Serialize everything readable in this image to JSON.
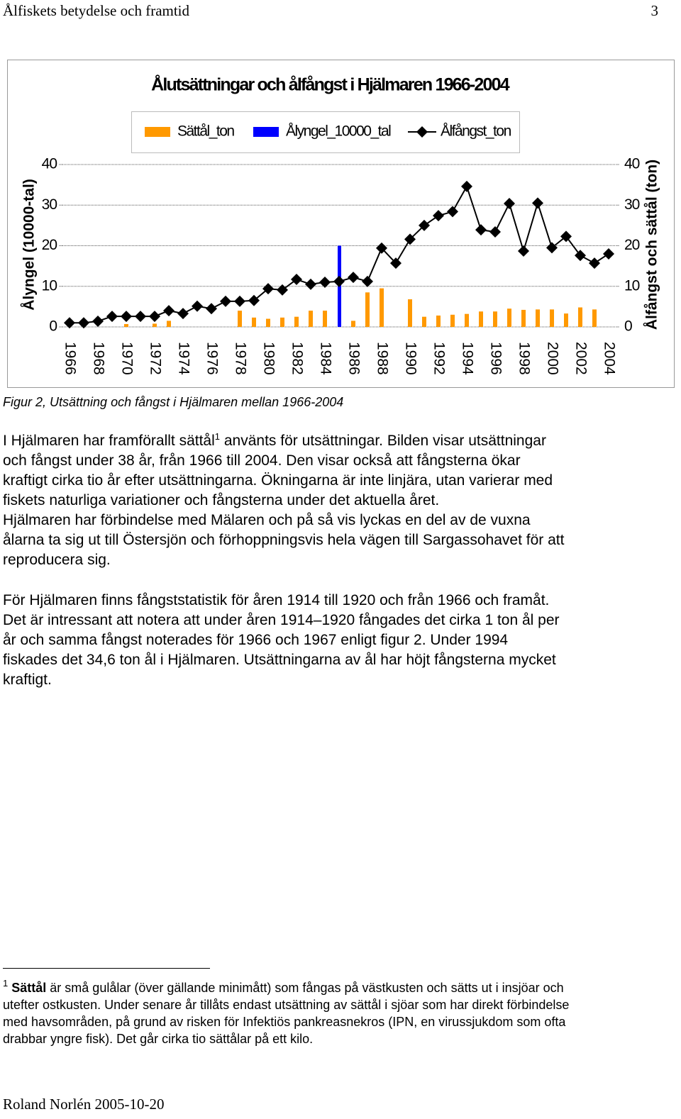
{
  "header": {
    "title": "Ålfiskets betydelse och framtid",
    "page": "3"
  },
  "chart_data": {
    "type": "bar",
    "title": "Ålutsättningar och ålfångst i Hjälmaren 1966-2004",
    "categories": [
      "1966",
      null,
      "1968",
      null,
      "1970",
      null,
      "1972",
      null,
      "1974",
      null,
      "1976",
      null,
      "1978",
      null,
      "1980",
      null,
      "1982",
      null,
      "1984",
      null,
      "1986",
      null,
      "1988",
      null,
      "1990",
      null,
      "1992",
      null,
      "1994",
      null,
      "1996",
      null,
      "1998",
      null,
      "2000",
      null,
      "2002",
      null,
      "2004"
    ],
    "series": [
      {
        "name": "Sättål_ton",
        "color": "#ff9900",
        "axis": "y2",
        "values": [
          0,
          0,
          0,
          0,
          0.7,
          0,
          0.8,
          1.5,
          0,
          0,
          0,
          0,
          4,
          2.3,
          2,
          2.3,
          2.5,
          4,
          4,
          0,
          1.5,
          8.5,
          9.5,
          0,
          6.8,
          2.5,
          2.8,
          3,
          3.2,
          3.8,
          3.8,
          4.5,
          4.2,
          4.3,
          4.3,
          3.3,
          4.8,
          4.3,
          0
        ]
      },
      {
        "name": "Ålyngel_10000_tal",
        "color": "#0000ff",
        "values": [
          0,
          0,
          0,
          0,
          0,
          0,
          0,
          0,
          0,
          0,
          0,
          0,
          0,
          0,
          0,
          0,
          0,
          0,
          0,
          20,
          0,
          0,
          0,
          0,
          0,
          0,
          0,
          0,
          0,
          0,
          0,
          0,
          0,
          0,
          0,
          0,
          0,
          0,
          0
        ]
      },
      {
        "name": "Ålfångst_ton",
        "color": "#000000",
        "axis": "y2",
        "type": "line",
        "values": [
          1,
          1,
          1.4,
          2.6,
          2.6,
          2.6,
          2.6,
          4,
          3.3,
          5.1,
          4.5,
          6.3,
          6.3,
          6.5,
          9.4,
          9.1,
          11.7,
          10.5,
          11,
          11.2,
          12.2,
          11.2,
          19.4,
          15.7,
          21.6,
          25,
          27.4,
          28.4,
          34.6,
          23.9,
          23.4,
          30.4,
          18.7,
          30.5,
          19.5,
          22.3,
          17.6,
          15.7,
          18
        ]
      }
    ],
    "y_label": "Ålyngel (10000-tal)",
    "y2_label": "Ålfångst och sättål (ton)",
    "ylim": [
      0,
      40
    ],
    "yticks": [
      0,
      10,
      20,
      30,
      40
    ],
    "y2lim": [
      0,
      40
    ],
    "y2ticks": [
      0,
      10,
      20,
      30,
      40
    ],
    "grid": true,
    "legend": "top"
  },
  "caption": "Figur 2, Utsättning och fångst i Hjälmaren mellan 1966-2004",
  "paragraph1": {
    "line1_start": "I Hjälmaren har framförallt sättål",
    "note_ref": "1",
    "line1_end": "använts för utsättningar. Bilden visar utsättningar",
    "lines": [
      "och fångst under 38 år, från 1966 till 2004. Den visar också att fångsterna ökar",
      "kraftigt cirka tio år efter utsättningarna. Ökningarna är inte linjära, utan varierar med",
      "fiskets naturliga variationer och fångsterna under det aktuella året.",
      "Hjälmaren har förbindelse med Mälaren och på så vis lyckas en del av de vuxna",
      "ålarna ta sig ut till Östersjön och förhoppningsvis hela vägen till Sargassohavet för att",
      "reproducera sig."
    ]
  },
  "paragraph2": {
    "lines": [
      "För Hjälmaren finns fångststatistik för åren 1914 till 1920 och från 1966 och framåt.",
      "Det är intressant att notera att under åren 1914–1920 fångades det cirka 1 ton ål per",
      "år och samma fångst noterades för 1966 och 1967 enligt figur 2. Under 1994",
      "fiskades det 34,6 ton ål i Hjälmaren. Utsättningarna av ål har höjt fångsterna mycket",
      "kraftigt."
    ]
  },
  "footnote": {
    "number": "1",
    "term": "Sättål",
    "line1_rest": "är små gulålar (över gällande minimått) som fångas på västkusten och sätts ut i insjöar och",
    "lines": [
      "utefter ostkusten. Under senare år tillåts endast utsättning av sättål i sjöar som har direkt förbindelse",
      "med havsområden, på grund av risken för Infektiös pankreasnekros (IPN, en virussjukdom som ofta",
      "drabbar yngre fisk). Det går cirka tio sättålar på ett kilo."
    ]
  },
  "footer": "Roland Norlén 2005-10-20"
}
